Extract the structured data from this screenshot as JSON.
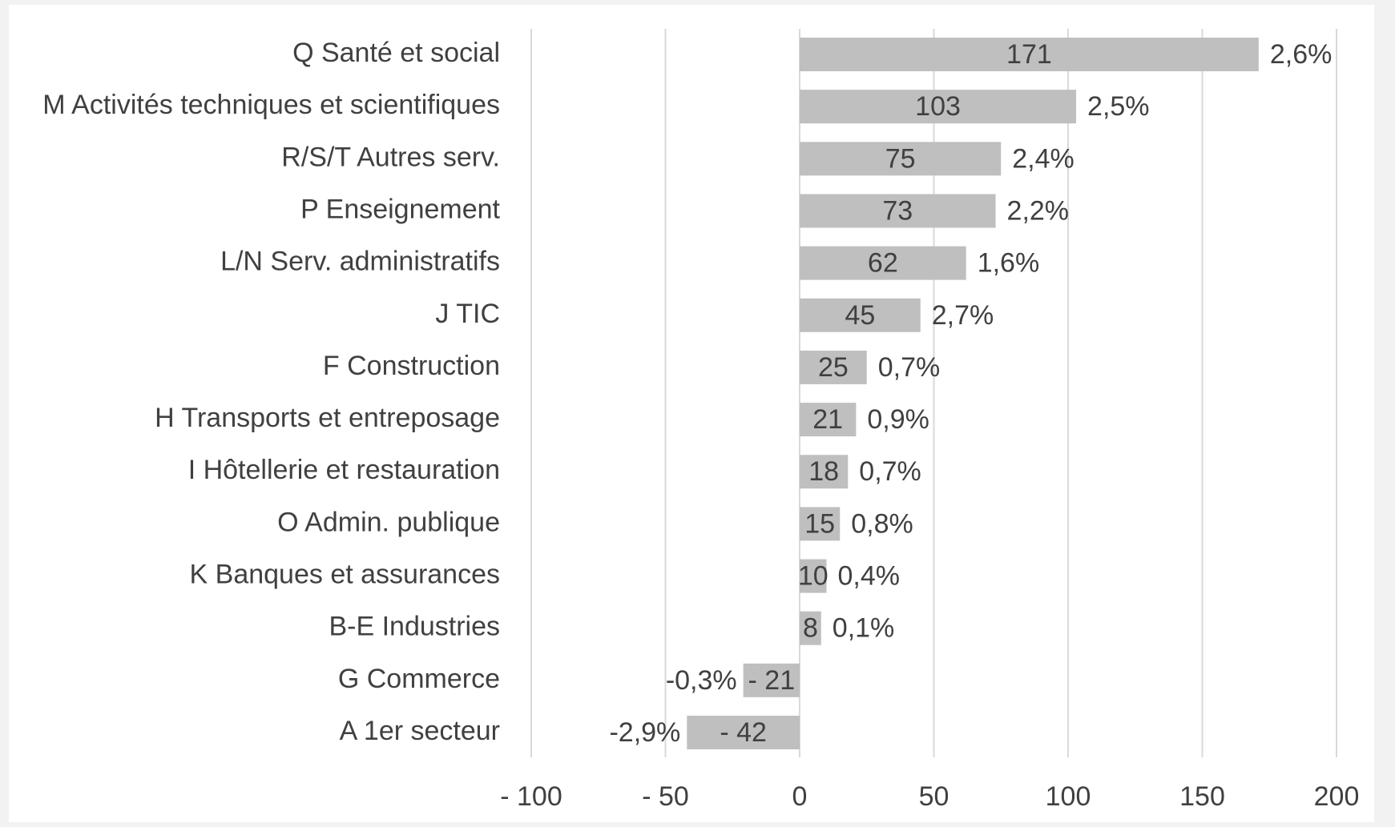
{
  "chart_data": {
    "type": "hbar",
    "categories": [
      "Q  Santé et social",
      "M  Activités techniques et scientifiques",
      "R/S/T  Autres serv.",
      "P  Enseignement",
      "L/N  Serv. administratifs",
      "J  TIC",
      "F  Construction",
      "H  Transports et entreposage",
      "I  Hôtellerie et restauration",
      "O  Admin. publique",
      "K  Banques et assurances",
      "B-E Industries",
      "G  Commerce",
      "A  1er secteur"
    ],
    "values": [
      171,
      103,
      75,
      73,
      62,
      45,
      25,
      21,
      18,
      15,
      10,
      8,
      -21,
      -42
    ],
    "value_labels": [
      "171",
      "103",
      "75",
      "73",
      "62",
      "45",
      "25",
      "21",
      "18",
      "15",
      "10",
      "8",
      "-  21",
      "-  42"
    ],
    "growth_rates": [
      2.6,
      2.5,
      2.4,
      2.2,
      1.6,
      2.7,
      0.7,
      0.9,
      0.7,
      0.8,
      0.4,
      0.1,
      -0.3,
      -2.9
    ],
    "growth_labels": [
      "2,6%",
      "2,5%",
      "2,4%",
      "2,2%",
      "1,6%",
      "2,7%",
      "0,7%",
      "0,9%",
      "0,7%",
      "0,8%",
      "0,4%",
      "0,1%",
      "-0,3%",
      "-2,9%"
    ],
    "color": "#bfbfbf",
    "xlim": [
      -100,
      200
    ],
    "xticks": [
      {
        "value": -100,
        "label": "-  100"
      },
      {
        "value": -50,
        "label": "-  50"
      },
      0,
      50,
      100,
      150,
      200
    ],
    "grid": true
  }
}
